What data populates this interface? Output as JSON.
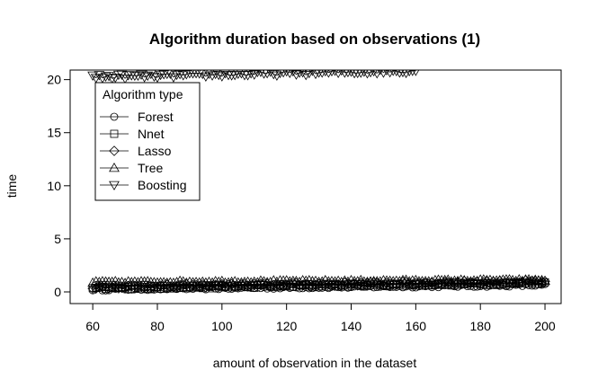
{
  "chart_data": {
    "type": "line",
    "title": "Algorithm duration based on observations (1)",
    "xlabel": "amount of observation in the dataset",
    "ylabel": "time",
    "xlim": [
      53,
      205
    ],
    "ylim": [
      -1.1,
      20.9
    ],
    "xticks": [
      60,
      80,
      100,
      120,
      140,
      160,
      180,
      200
    ],
    "yticks": [
      0,
      5,
      10,
      15,
      20
    ],
    "grid": false,
    "legend_title": "Algorithm type",
    "legend_position": "top-left",
    "series": [
      {
        "name": "Forest",
        "marker": "circle",
        "x_range": [
          60,
          200
        ],
        "y_start": 0.25,
        "y_end": 0.65,
        "noise": 0.12
      },
      {
        "name": "Nnet",
        "marker": "square",
        "x_range": [
          60,
          200
        ],
        "y_start": 0.35,
        "y_end": 0.85,
        "noise": 0.15
      },
      {
        "name": "Lasso",
        "marker": "diamond",
        "x_range": [
          60,
          200
        ],
        "y_start": 0.45,
        "y_end": 0.95,
        "noise": 0.15
      },
      {
        "name": "Tree",
        "marker": "triangle-up",
        "x_range": [
          60,
          200
        ],
        "y_start": 0.9,
        "y_end": 1.1,
        "noise": 0.1
      },
      {
        "name": "Boosting",
        "marker": "triangle-down",
        "x_range": [
          60,
          160
        ],
        "y_start": 20.25,
        "y_end": 20.85,
        "noise": 0.2
      }
    ]
  }
}
